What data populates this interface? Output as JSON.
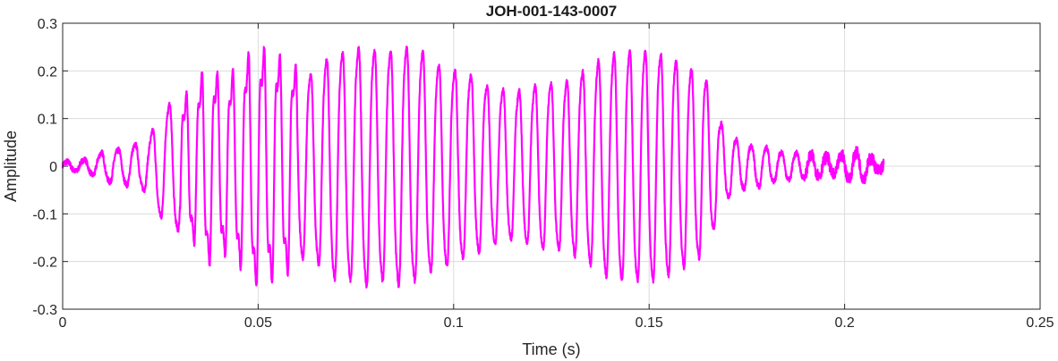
{
  "chart_data": {
    "type": "line",
    "title": "JOH-001-143-0007",
    "xlabel": "Time (s)",
    "ylabel": "Amplitude",
    "xlim": [
      0,
      0.25
    ],
    "ylim": [
      -0.3,
      0.3
    ],
    "xticks": [
      0,
      0.05,
      0.1,
      0.15,
      0.2,
      0.25
    ],
    "xtick_labels": [
      "0",
      "0.05",
      "0.1",
      "0.15",
      "0.2",
      "0.25"
    ],
    "yticks": [
      -0.3,
      -0.2,
      -0.1,
      0,
      0.1,
      0.2,
      0.3
    ],
    "ytick_labels": [
      "-0.3",
      "-0.2",
      "-0.1",
      "0",
      "0.1",
      "0.2",
      "0.3"
    ],
    "grid": true,
    "series": [
      {
        "color": "#ff00ff",
        "x": [
          0,
          0.002,
          0.004,
          0.006,
          0.008,
          0.01,
          0.012,
          0.014,
          0.016,
          0.018,
          0.02,
          0.022,
          0.024,
          0.026,
          0.028,
          0.03,
          0.032,
          0.034,
          0.036,
          0.038,
          0.04,
          0.042,
          0.044,
          0.046,
          0.048,
          0.05,
          0.052,
          0.054,
          0.056,
          0.058,
          0.06,
          0.062,
          0.064,
          0.066,
          0.068,
          0.07,
          0.072,
          0.074,
          0.076,
          0.078,
          0.08,
          0.082,
          0.084,
          0.086,
          0.088,
          0.09,
          0.092,
          0.094,
          0.096,
          0.098,
          0.1,
          0.102,
          0.104,
          0.106,
          0.108,
          0.11,
          0.112,
          0.114,
          0.116,
          0.118,
          0.12,
          0.122,
          0.124,
          0.126,
          0.128,
          0.13,
          0.132,
          0.134,
          0.136,
          0.138,
          0.14,
          0.142,
          0.144,
          0.146,
          0.148,
          0.15,
          0.152,
          0.154,
          0.156,
          0.158,
          0.16,
          0.162,
          0.164,
          0.166,
          0.168,
          0.17,
          0.172,
          0.174,
          0.176,
          0.178,
          0.18,
          0.182,
          0.184,
          0.186,
          0.188,
          0.19,
          0.192,
          0.194,
          0.196,
          0.198,
          0.2,
          0.202,
          0.204,
          0.206,
          0.208,
          0.21
        ],
        "amplitude_envelope": [
          0.01,
          0.01,
          0.012,
          0.015,
          0.02,
          0.03,
          0.035,
          0.035,
          0.04,
          0.045,
          0.05,
          0.055,
          0.1,
          0.12,
          0.14,
          0.14,
          0.15,
          0.16,
          0.2,
          0.2,
          0.19,
          0.18,
          0.2,
          0.21,
          0.24,
          0.25,
          0.24,
          0.24,
          0.22,
          0.22,
          0.2,
          0.2,
          0.2,
          0.22,
          0.24,
          0.25,
          0.25,
          0.25,
          0.26,
          0.26,
          0.25,
          0.25,
          0.25,
          0.26,
          0.26,
          0.25,
          0.25,
          0.23,
          0.22,
          0.22,
          0.21,
          0.2,
          0.2,
          0.19,
          0.18,
          0.17,
          0.17,
          0.16,
          0.16,
          0.17,
          0.17,
          0.18,
          0.18,
          0.18,
          0.18,
          0.19,
          0.2,
          0.21,
          0.22,
          0.24,
          0.24,
          0.25,
          0.25,
          0.25,
          0.25,
          0.25,
          0.25,
          0.24,
          0.24,
          0.22,
          0.22,
          0.2,
          0.2,
          0.15,
          0.1,
          0.07,
          0.06,
          0.05,
          0.045,
          0.045,
          0.04,
          0.035,
          0.03,
          0.03,
          0.028,
          0.025,
          0.022,
          0.02,
          0.02,
          0.02,
          0.025,
          0.03,
          0.03,
          0.02,
          0.012,
          0.005
        ]
      }
    ]
  }
}
